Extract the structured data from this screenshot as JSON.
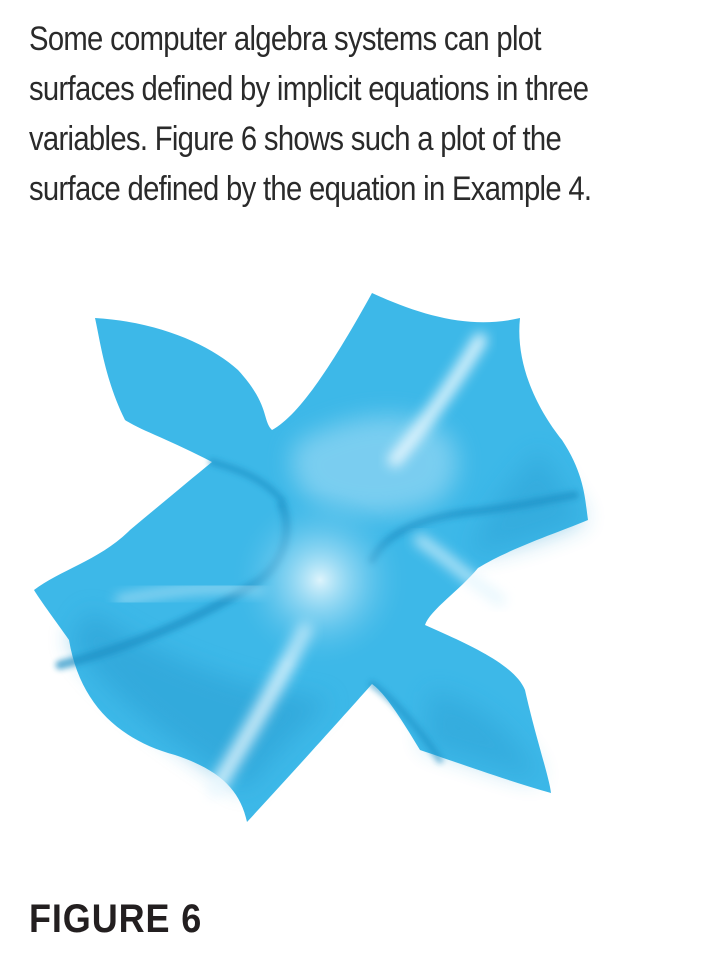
{
  "paragraph": {
    "lines": [
      "Some computer algebra systems can plot",
      "surfaces defined by implicit equations in three",
      "variables. Figure 6 shows such a plot of the",
      "surface defined by the equation in Example 4."
    ]
  },
  "figure": {
    "caption": "FIGURE 6",
    "surface_colors": {
      "base": "#3db8e8",
      "light": "#a6e0f6",
      "highlight": "#e3f6fd",
      "dark": "#1f94c9"
    }
  }
}
